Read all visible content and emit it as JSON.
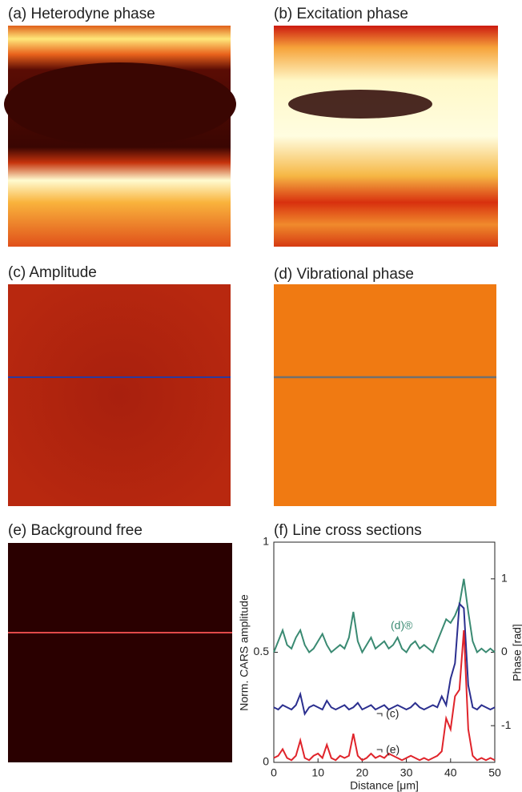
{
  "images": [
    {
      "title": "(a) Heterodyne phase"
    },
    {
      "title": "(b) Excitation phase"
    },
    {
      "title": "(c) Amplitude"
    },
    {
      "title": "(d) Vibrational phase"
    },
    {
      "title": "(e) Background free"
    }
  ],
  "chart_data": {
    "type": "line",
    "title": "(f) Line cross sections",
    "x_label": "Distance [μm]",
    "y_label": "Norm. CARS amplitude",
    "y2_label": "Phase [rad]",
    "x": [
      0,
      1,
      2,
      3,
      4,
      5,
      6,
      7,
      8,
      9,
      10,
      11,
      12,
      13,
      14,
      15,
      16,
      17,
      18,
      19,
      20,
      21,
      22,
      23,
      24,
      25,
      26,
      27,
      28,
      29,
      30,
      31,
      32,
      33,
      34,
      35,
      36,
      37,
      38,
      39,
      40,
      41,
      42,
      43,
      44,
      45,
      46,
      47,
      48,
      49,
      50
    ],
    "xlim": [
      0,
      50
    ],
    "xticks": [
      0,
      10,
      20,
      30,
      40,
      50
    ],
    "ylim": [
      0,
      1
    ],
    "yticks": [
      0,
      0.5,
      1
    ],
    "y2lim": [
      -1.5,
      1.5
    ],
    "y2ticks": [
      -1,
      0,
      1
    ],
    "series": [
      {
        "name": "(d)®",
        "color": "#3a8a72",
        "axis": "y2",
        "values": [
          0.0,
          0.15,
          0.3,
          0.1,
          0.05,
          0.2,
          0.3,
          0.1,
          0.0,
          0.05,
          0.15,
          0.25,
          0.1,
          0.0,
          0.05,
          0.1,
          0.05,
          0.2,
          0.55,
          0.15,
          0.0,
          0.1,
          0.2,
          0.05,
          0.1,
          0.15,
          0.05,
          0.1,
          0.2,
          0.05,
          0.0,
          0.1,
          0.15,
          0.05,
          0.1,
          0.05,
          0.0,
          0.15,
          0.3,
          0.45,
          0.4,
          0.5,
          0.65,
          1.0,
          0.55,
          0.15,
          0.0,
          0.05,
          0.0,
          0.05,
          0.0
        ]
      },
      {
        "name": "¬ (c)",
        "color": "#2b2f8f",
        "values": [
          0.25,
          0.24,
          0.26,
          0.25,
          0.24,
          0.26,
          0.31,
          0.22,
          0.25,
          0.26,
          0.25,
          0.24,
          0.28,
          0.25,
          0.24,
          0.25,
          0.26,
          0.24,
          0.25,
          0.27,
          0.24,
          0.25,
          0.26,
          0.24,
          0.25,
          0.26,
          0.24,
          0.25,
          0.26,
          0.25,
          0.24,
          0.25,
          0.27,
          0.25,
          0.24,
          0.25,
          0.26,
          0.25,
          0.3,
          0.26,
          0.38,
          0.45,
          0.72,
          0.7,
          0.35,
          0.25,
          0.24,
          0.26,
          0.25,
          0.24,
          0.25
        ]
      },
      {
        "name": "¬ (e)",
        "color": "#e0242b",
        "values": [
          0.02,
          0.03,
          0.06,
          0.02,
          0.01,
          0.03,
          0.1,
          0.02,
          0.01,
          0.03,
          0.04,
          0.02,
          0.08,
          0.02,
          0.01,
          0.03,
          0.02,
          0.03,
          0.13,
          0.03,
          0.01,
          0.02,
          0.04,
          0.02,
          0.03,
          0.02,
          0.04,
          0.03,
          0.02,
          0.01,
          0.02,
          0.03,
          0.02,
          0.01,
          0.02,
          0.01,
          0.02,
          0.03,
          0.05,
          0.2,
          0.15,
          0.3,
          0.33,
          0.6,
          0.15,
          0.03,
          0.01,
          0.02,
          0.01,
          0.02,
          0.01
        ]
      }
    ]
  }
}
